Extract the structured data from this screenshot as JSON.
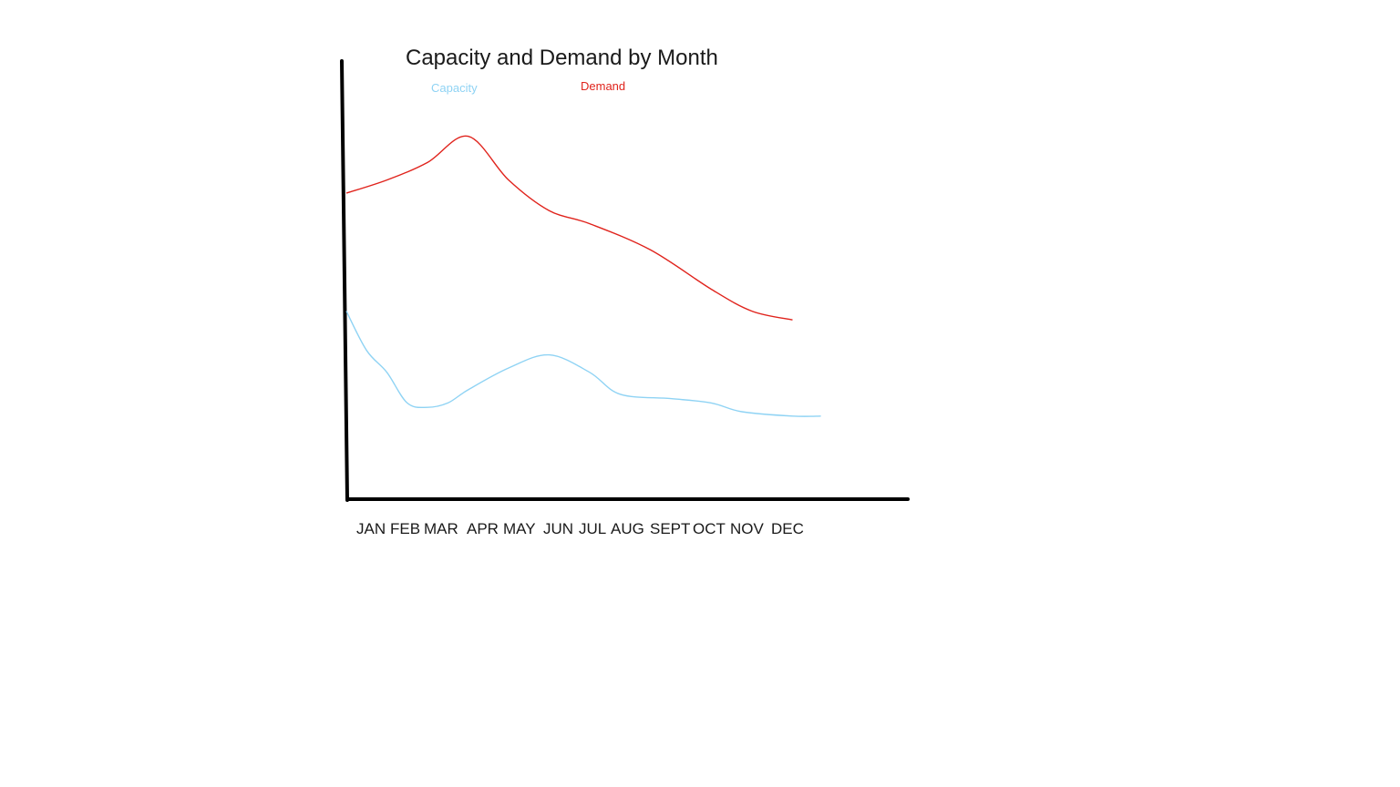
{
  "chart_data": {
    "type": "line",
    "title": "Capacity and Demand by Month",
    "xlabel": "",
    "ylabel": "",
    "categories": [
      "JAN",
      "FEB",
      "MAR",
      "APR",
      "MAY",
      "JUN",
      "JUL",
      "AUG",
      "SEPT",
      "OCT",
      "NOV",
      "DEC"
    ],
    "ylim": [
      0,
      100
    ],
    "grid": false,
    "legend": "top",
    "series": [
      {
        "name": "Capacity",
        "color": "#8fd3f4",
        "values": [
          {
            "x": 0.0,
            "y": 43
          },
          {
            "x": 0.5,
            "y": 34
          },
          {
            "x": 1.0,
            "y": 29
          },
          {
            "x": 1.5,
            "y": 22
          },
          {
            "x": 2.0,
            "y": 21
          },
          {
            "x": 2.5,
            "y": 22
          },
          {
            "x": 3.0,
            "y": 25
          },
          {
            "x": 4.0,
            "y": 30
          },
          {
            "x": 5.0,
            "y": 33
          },
          {
            "x": 6.0,
            "y": 29
          },
          {
            "x": 6.75,
            "y": 24
          },
          {
            "x": 8.0,
            "y": 23
          },
          {
            "x": 9.0,
            "y": 22
          },
          {
            "x": 9.75,
            "y": 20
          },
          {
            "x": 11.0,
            "y": 19
          },
          {
            "x": 11.7,
            "y": 19
          }
        ]
      },
      {
        "name": "Demand",
        "color": "#e0231c",
        "values": [
          {
            "x": 0.0,
            "y": 70
          },
          {
            "x": 1.0,
            "y": 73
          },
          {
            "x": 2.0,
            "y": 77
          },
          {
            "x": 3.0,
            "y": 83
          },
          {
            "x": 4.0,
            "y": 73
          },
          {
            "x": 5.0,
            "y": 66
          },
          {
            "x": 6.0,
            "y": 63
          },
          {
            "x": 7.5,
            "y": 57
          },
          {
            "x": 9.0,
            "y": 48
          },
          {
            "x": 10.0,
            "y": 43
          },
          {
            "x": 11.0,
            "y": 41
          }
        ]
      }
    ]
  }
}
